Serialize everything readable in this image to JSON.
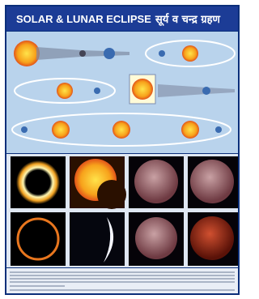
{
  "header": {
    "title": "SOLAR & LUNAR ECLIPSE",
    "title_hindi": "सूर्य व चन्द्र ग्रहण"
  }
}
